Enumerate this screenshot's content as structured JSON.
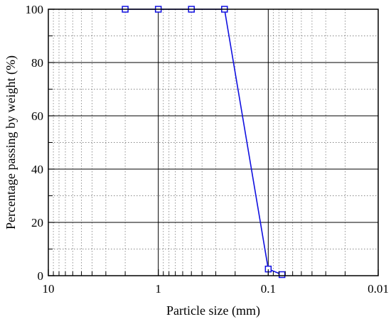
{
  "chart_data": {
    "type": "line",
    "title": "",
    "xlabel": "Particle size (mm)",
    "ylabel": "Percentage passing by weight (%)",
    "x_scale": "log",
    "x_reversed": true,
    "xlim": [
      10,
      0.01
    ],
    "ylim": [
      0,
      100
    ],
    "x_ticks": [
      10,
      1,
      0.1,
      0.01
    ],
    "x_tick_labels": [
      "10",
      "1",
      "0.1",
      "0.01"
    ],
    "y_ticks": [
      0,
      20,
      40,
      60,
      80,
      100
    ],
    "y_tick_labels": [
      "0",
      "20",
      "40",
      "60",
      "80",
      "100"
    ],
    "grid": "major solid, minor dotted",
    "legend": "none",
    "series": [
      {
        "marker": "open-square",
        "color": "#1010e0",
        "x": [
          2,
          1,
          0.5,
          0.25,
          0.1,
          0.075
        ],
        "y": [
          100,
          100,
          100,
          100,
          2.5,
          0.4
        ]
      }
    ]
  }
}
